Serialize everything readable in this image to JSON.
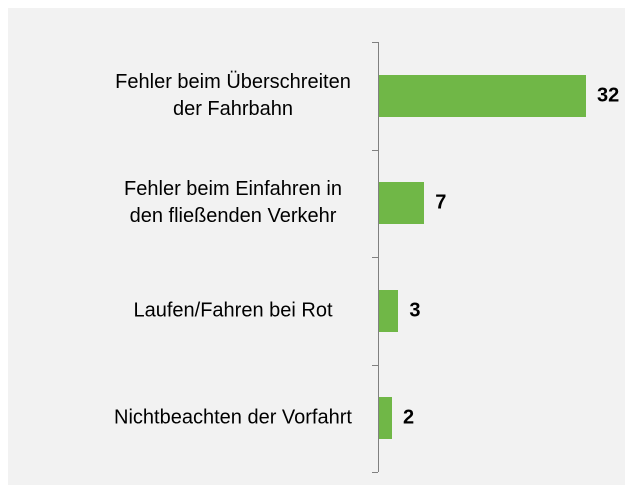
{
  "chart_data": {
    "type": "bar",
    "orientation": "horizontal",
    "categories": [
      "Fehler beim Überschreiten der Fahrbahn",
      "Fehler beim Einfahren in den fließenden Verkehr",
      "Laufen/Fahren bei Rot",
      "Nichtbeachten der Vorfahrt"
    ],
    "values": [
      32,
      7,
      3,
      2
    ],
    "color": "#70b747"
  }
}
